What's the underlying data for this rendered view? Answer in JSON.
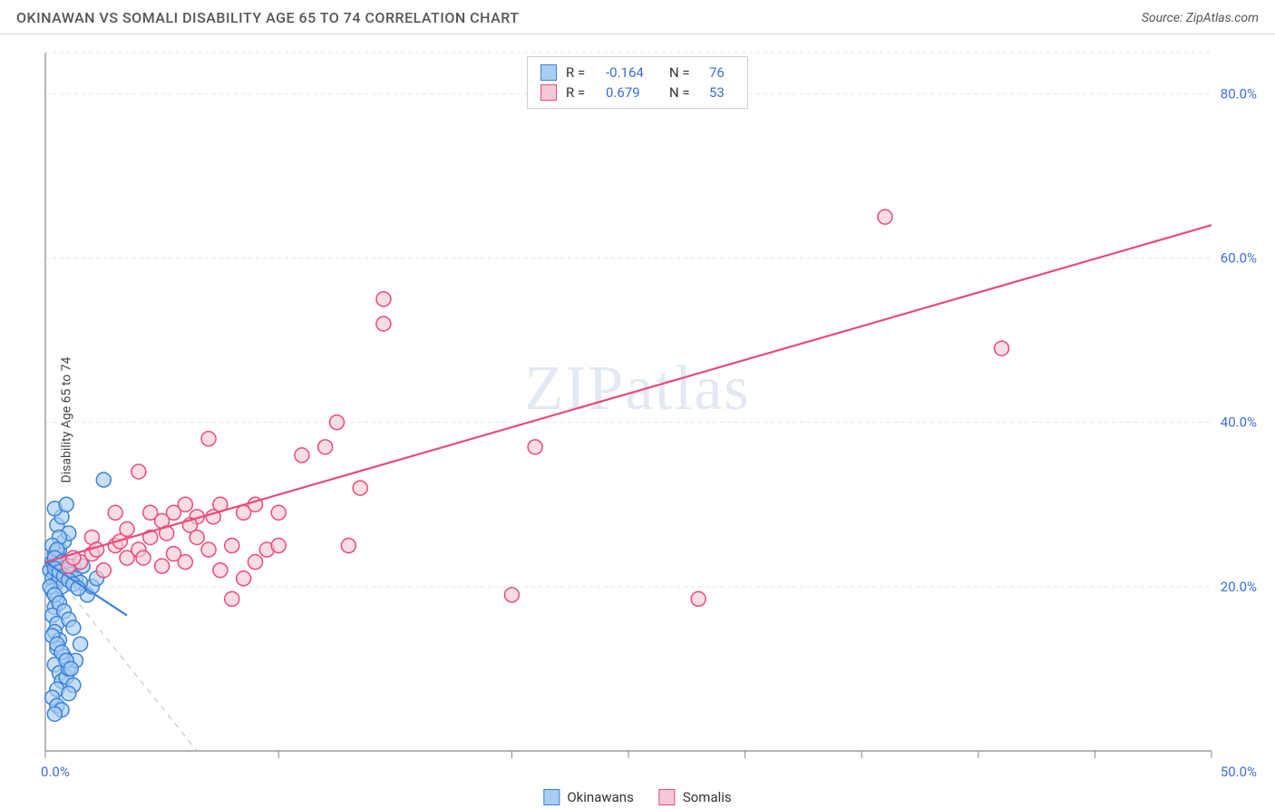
{
  "header": {
    "title": "OKINAWAN VS SOMALI DISABILITY AGE 65 TO 74 CORRELATION CHART",
    "source_prefix": "Source: ",
    "source_name": "ZipAtlas.com"
  },
  "ylabel": "Disability Age 65 to 74",
  "watermark": "ZIPatlas",
  "chart": {
    "type": "scatter",
    "xlim": [
      0,
      50
    ],
    "ylim": [
      0,
      85
    ],
    "x_ticks": [
      0,
      10,
      20,
      25,
      30,
      35,
      40,
      45,
      50
    ],
    "x_tick_labels": {
      "0": "0.0%",
      "50": "50.0%"
    },
    "y_ticks": [
      20,
      40,
      60,
      80
    ],
    "y_tick_labels": {
      "20": "20.0%",
      "40": "40.0%",
      "60": "60.0%",
      "80": "80.0%"
    },
    "grid_y": [
      20,
      40,
      60,
      80,
      85
    ],
    "grid_color": "#e5e5e5",
    "axis_color": "#888888",
    "background": "#ffffff",
    "marker_radius": 8,
    "marker_stroke_width": 1.5,
    "trend_line_width": 2.2,
    "diag_dash": "6,6",
    "series": [
      {
        "name": "Okinawans",
        "fill": "#a9cdf2",
        "stroke": "#3b82d6",
        "r_value": "-0.164",
        "n_value": "76",
        "trend": {
          "x1": 0,
          "y1": 23,
          "x2": 3.5,
          "y2": 16.5
        },
        "points": [
          [
            0.2,
            22
          ],
          [
            0.3,
            23
          ],
          [
            0.4,
            21.5
          ],
          [
            0.5,
            22.5
          ],
          [
            0.6,
            23.5
          ],
          [
            0.3,
            21
          ],
          [
            0.7,
            22
          ],
          [
            0.4,
            24
          ],
          [
            0.5,
            20.5
          ],
          [
            0.6,
            21
          ],
          [
            0.8,
            22.8
          ],
          [
            0.3,
            19.5
          ],
          [
            0.5,
            18.5
          ],
          [
            0.4,
            17.5
          ],
          [
            0.7,
            20
          ],
          [
            0.9,
            21.5
          ],
          [
            1.0,
            22
          ],
          [
            1.2,
            22.5
          ],
          [
            0.3,
            16.5
          ],
          [
            0.5,
            15.5
          ],
          [
            0.4,
            14.5
          ],
          [
            0.6,
            13.5
          ],
          [
            0.5,
            12.5
          ],
          [
            0.8,
            11.5
          ],
          [
            0.4,
            10.5
          ],
          [
            0.6,
            9.5
          ],
          [
            0.7,
            8.5
          ],
          [
            0.5,
            7.5
          ],
          [
            0.9,
            9
          ],
          [
            1.0,
            10
          ],
          [
            1.2,
            8
          ],
          [
            0.3,
            6.5
          ],
          [
            0.5,
            5.5
          ],
          [
            0.7,
            5
          ],
          [
            0.4,
            4.5
          ],
          [
            1.0,
            7
          ],
          [
            1.3,
            11
          ],
          [
            1.5,
            13
          ],
          [
            1.8,
            19
          ],
          [
            2.0,
            20
          ],
          [
            2.2,
            21
          ],
          [
            1.6,
            22.5
          ],
          [
            0.6,
            24.5
          ],
          [
            0.8,
            25.5
          ],
          [
            1.0,
            26.5
          ],
          [
            0.5,
            27.5
          ],
          [
            0.7,
            28.5
          ],
          [
            0.4,
            29.5
          ],
          [
            0.9,
            30
          ],
          [
            2.5,
            33
          ],
          [
            0.6,
            26
          ],
          [
            0.3,
            25
          ],
          [
            0.5,
            24.5
          ],
          [
            0.4,
            23.5
          ],
          [
            0.7,
            23
          ],
          [
            0.9,
            22
          ],
          [
            1.1,
            21.5
          ],
          [
            1.3,
            21
          ],
          [
            1.5,
            20.5
          ],
          [
            0.2,
            20
          ],
          [
            0.4,
            19
          ],
          [
            0.6,
            18
          ],
          [
            0.8,
            17
          ],
          [
            1.0,
            16
          ],
          [
            1.2,
            15
          ],
          [
            0.3,
            14
          ],
          [
            0.5,
            13
          ],
          [
            0.7,
            12
          ],
          [
            0.9,
            11
          ],
          [
            1.1,
            10
          ],
          [
            0.4,
            22.2
          ],
          [
            0.6,
            21.8
          ],
          [
            0.8,
            21.3
          ],
          [
            1.0,
            20.8
          ],
          [
            1.2,
            20.3
          ],
          [
            1.4,
            19.8
          ]
        ]
      },
      {
        "name": "Somalis",
        "fill": "#f6c9d6",
        "stroke": "#e94b7a",
        "r_value": "0.679",
        "n_value": "53",
        "trend": {
          "x1": 0,
          "y1": 23,
          "x2": 50,
          "y2": 64
        },
        "points": [
          [
            1,
            22.5
          ],
          [
            1.5,
            23
          ],
          [
            2,
            24
          ],
          [
            2.5,
            22
          ],
          [
            3,
            25
          ],
          [
            3.5,
            23.5
          ],
          [
            4,
            24.5
          ],
          [
            4.5,
            26
          ],
          [
            5,
            22.5
          ],
          [
            5.5,
            29
          ],
          [
            6,
            23
          ],
          [
            6.5,
            28.5
          ],
          [
            7,
            24.5
          ],
          [
            7.5,
            22
          ],
          [
            8,
            25
          ],
          [
            8.5,
            29
          ],
          [
            9,
            23
          ],
          [
            9.5,
            24.5
          ],
          [
            10,
            25
          ],
          [
            6,
            30
          ],
          [
            4,
            34
          ],
          [
            5,
            28
          ],
          [
            3,
            29
          ],
          [
            7,
            38
          ],
          [
            8.5,
            21
          ],
          [
            9,
            30
          ],
          [
            10,
            29
          ],
          [
            11,
            36
          ],
          [
            12,
            37
          ],
          [
            12.5,
            40
          ],
          [
            13,
            25
          ],
          [
            13.5,
            32
          ],
          [
            14.5,
            55
          ],
          [
            14.5,
            52
          ],
          [
            8,
            18.5
          ],
          [
            21,
            37
          ],
          [
            20,
            19
          ],
          [
            28,
            18.5
          ],
          [
            36,
            65
          ],
          [
            41,
            49
          ],
          [
            2,
            26
          ],
          [
            3.5,
            27
          ],
          [
            4.5,
            29
          ],
          [
            5.5,
            24
          ],
          [
            6.5,
            26
          ],
          [
            7.5,
            30
          ],
          [
            1.2,
            23.5
          ],
          [
            2.2,
            24.5
          ],
          [
            3.2,
            25.5
          ],
          [
            4.2,
            23.5
          ],
          [
            5.2,
            26.5
          ],
          [
            6.2,
            27.5
          ],
          [
            7.2,
            28.5
          ]
        ]
      }
    ],
    "diag_line": {
      "x1": 0,
      "y1": 23,
      "x2": 6.5,
      "y2": 0
    }
  },
  "legend_top": {
    "rows": [
      {
        "swatch_fill": "#a9cdf2",
        "swatch_stroke": "#3b82d6",
        "r_label": "R =",
        "r_value": "-0.164",
        "n_label": "N =",
        "n_value": "76"
      },
      {
        "swatch_fill": "#f6c9d6",
        "swatch_stroke": "#e94b7a",
        "r_label": "R =",
        "r_value": "0.679",
        "n_label": "N =",
        "n_value": "53"
      }
    ]
  },
  "legend_bottom": [
    {
      "swatch_fill": "#a9cdf2",
      "swatch_stroke": "#3b82d6",
      "label": "Okinawans"
    },
    {
      "swatch_fill": "#f6c9d6",
      "swatch_stroke": "#e94b7a",
      "label": "Somalis"
    }
  ]
}
